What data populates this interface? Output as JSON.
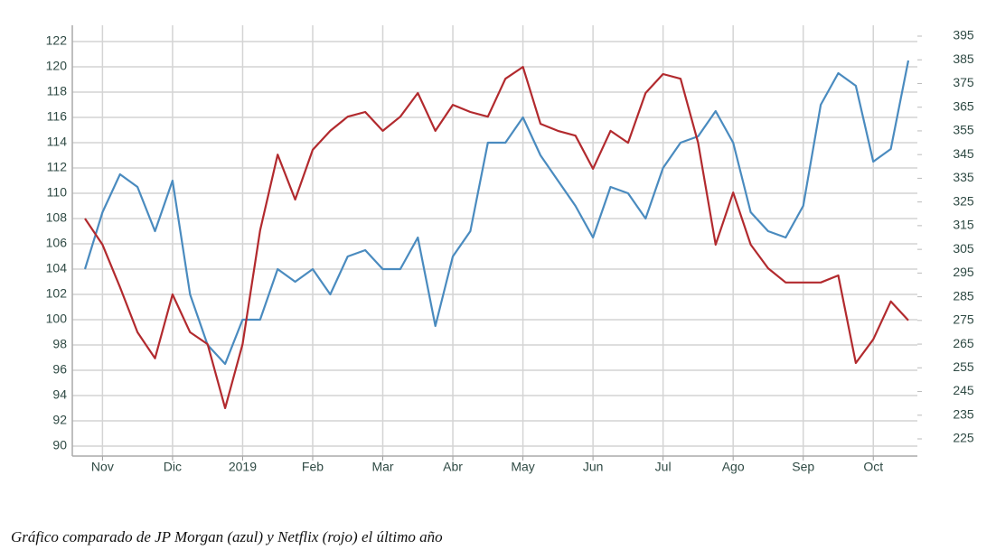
{
  "chart_data": {
    "type": "line",
    "caption": "Gráfico comparado de JP Morgan (azul) y Netflix (rojo) el último año",
    "categories": [
      null,
      "Nov",
      null,
      null,
      null,
      "Dic",
      null,
      null,
      null,
      "2019",
      null,
      null,
      null,
      "Feb",
      null,
      null,
      null,
      "Mar",
      null,
      null,
      null,
      "Abr",
      null,
      null,
      null,
      "May",
      null,
      null,
      null,
      "Jun",
      null,
      null,
      null,
      "Jul",
      null,
      null,
      null,
      "Ago",
      null,
      null,
      null,
      "Sep",
      null,
      null,
      null,
      "Oct",
      null,
      null
    ],
    "series": [
      {
        "color": "#4a8bbf",
        "values": [
          104,
          108.5,
          111.5,
          110.5,
          107,
          111,
          102,
          98,
          96.5,
          100,
          100,
          104,
          103,
          104,
          102,
          105,
          105.5,
          104,
          104,
          106.5,
          99.5,
          105,
          107,
          114,
          114,
          116,
          113,
          111,
          109,
          106.5,
          110.5,
          110,
          108,
          112,
          114,
          114.5,
          116.5,
          114,
          108.5,
          107,
          106.5,
          109,
          117,
          119.5,
          118.5,
          112.5,
          113.5,
          120.5
        ]
      },
      {
        "color": "#b22a2e",
        "axis": "y2",
        "values": [
          318,
          307,
          289,
          270,
          259,
          286,
          270,
          265,
          238,
          265,
          313,
          345,
          326,
          347,
          355,
          361,
          363,
          355,
          361,
          371,
          355,
          366,
          363,
          361,
          377,
          382,
          358,
          355,
          353,
          339,
          355,
          350,
          371,
          379,
          377,
          350,
          307,
          329,
          307,
          297,
          291,
          291,
          291,
          294,
          257,
          267,
          283,
          275
        ]
      }
    ],
    "ylim": [
      90,
      122
    ],
    "yticks": [
      90,
      92,
      94,
      96,
      98,
      100,
      102,
      104,
      106,
      108,
      110,
      112,
      114,
      116,
      118,
      120,
      122
    ],
    "y2lim": [
      225,
      395
    ],
    "y2ticks": [
      225,
      235,
      245,
      255,
      265,
      275,
      285,
      295,
      305,
      315,
      325,
      335,
      345,
      355,
      365,
      375,
      385,
      395
    ],
    "grid": true
  }
}
